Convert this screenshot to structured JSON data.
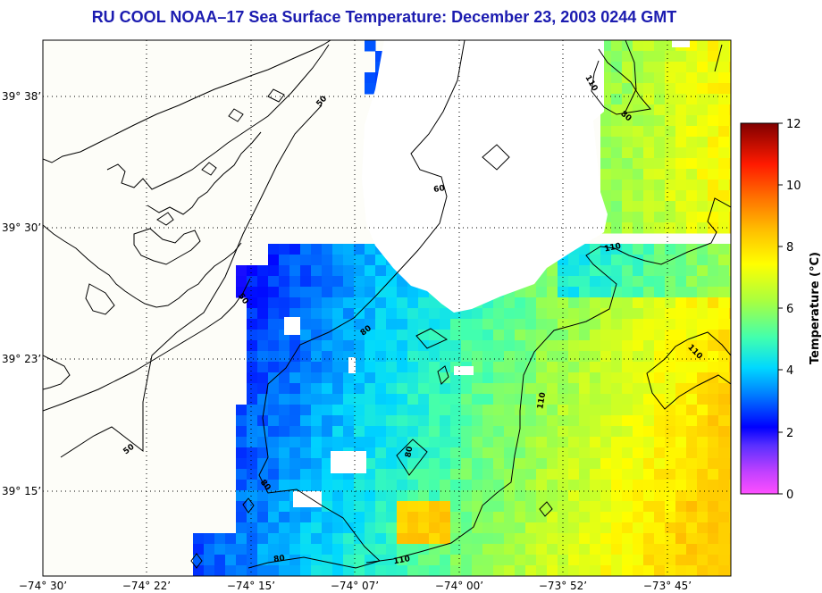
{
  "title": "RU COOL  NOAA–17  Sea Surface Temperature:  December 23, 2003 0244 GMT",
  "map": {
    "lat_labels": [
      "39° 38’",
      "39° 30’",
      "39° 23’",
      "39° 15’"
    ],
    "lon_labels": [
      "−74° 30’",
      "−74° 22’",
      "−74° 15’",
      "−74° 07’",
      "−74° 00’",
      "−73° 52’",
      "−73° 45’"
    ],
    "contour_labels": [
      "50",
      "60",
      "110",
      "80",
      "80",
      "50",
      "80",
      "110",
      "110",
      "80",
      "110",
      "50",
      "80",
      "110"
    ],
    "land_color": "#fdfdf8",
    "cloud_color": "#ffffff"
  },
  "colorbar": {
    "title": "Temperature (°C)",
    "ticks": [
      "0",
      "2",
      "4",
      "6",
      "8",
      "10",
      "12"
    ],
    "min": 0,
    "max": 12
  }
}
